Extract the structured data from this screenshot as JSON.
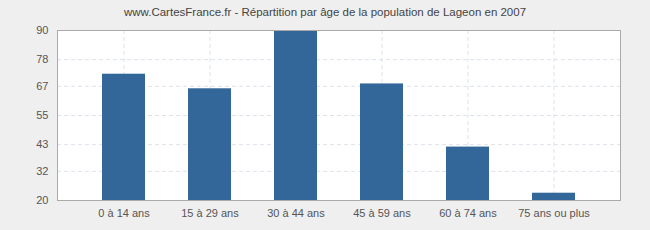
{
  "chart_data": {
    "type": "bar",
    "title": "www.CartesFrance.fr - Répartition par âge de la population de Lageon en 2007",
    "categories": [
      "0 à 14 ans",
      "15 à 29 ans",
      "30 à 44 ans",
      "45 à 59 ans",
      "60 à 74 ans",
      "75 ans ou plus"
    ],
    "values": [
      72,
      66,
      90,
      68,
      42,
      23
    ],
    "color": "#336699",
    "ylim": [
      20,
      90
    ],
    "yticks": [
      20,
      32,
      43,
      55,
      67,
      78,
      90
    ],
    "grid": true
  }
}
